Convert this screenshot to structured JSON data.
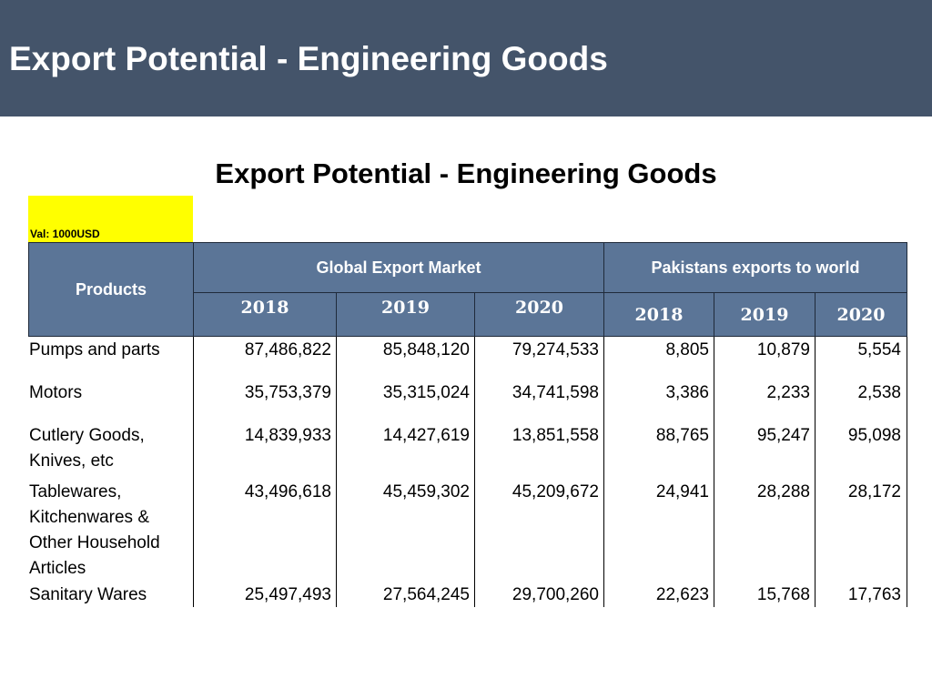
{
  "header": {
    "title": "Export Potential - Engineering Goods"
  },
  "table_title": "Export Potential - Engineering Goods",
  "unit_label": "Val: 1000USD",
  "columns": {
    "products": "Products",
    "global_group": "Global Export Market",
    "pakistan_group": "Pakistans exports to world",
    "global_years": [
      "2018",
      "2019",
      "2020"
    ],
    "pakistan_years": [
      "2018",
      "2019",
      "2020"
    ]
  },
  "rows": [
    {
      "product": "Pumps and parts",
      "global": [
        "87,486,822",
        "85,848,120",
        "79,274,533"
      ],
      "pakistan": [
        "8,805",
        "10,879",
        "5,554"
      ]
    },
    {
      "product": "Motors",
      "global": [
        "35,753,379",
        "35,315,024",
        "34,741,598"
      ],
      "pakistan": [
        "3,386",
        "2,233",
        "2,538"
      ]
    },
    {
      "product": "Cutlery Goods, Knives, etc",
      "global": [
        "14,839,933",
        "14,427,619",
        "13,851,558"
      ],
      "pakistan": [
        "88,765",
        "95,247",
        "95,098"
      ]
    },
    {
      "product": "Tablewares, Kitchenwares & Other Household Articles",
      "global": [
        "43,496,618",
        "45,459,302",
        "45,209,672"
      ],
      "pakistan": [
        "24,941",
        "28,288",
        "28,172"
      ]
    },
    {
      "product": "Sanitary Wares",
      "global": [
        "25,497,493",
        "27,564,245",
        "29,700,260"
      ],
      "pakistan": [
        "22,623",
        "15,768",
        "17,763"
      ]
    }
  ],
  "colors": {
    "header_bar": "#44546a",
    "table_header": "#5b7597",
    "unit_highlight": "#ffff00"
  }
}
